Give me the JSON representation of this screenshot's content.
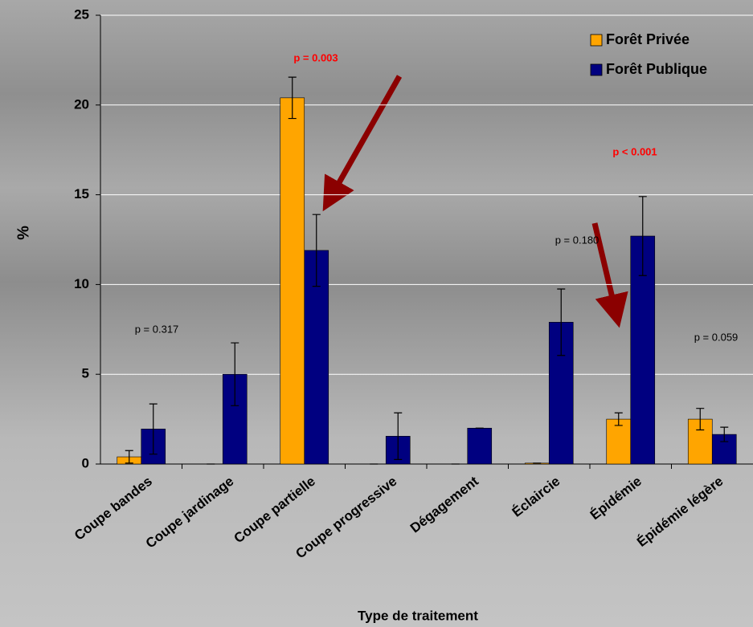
{
  "chart_data": {
    "type": "bar",
    "y_label": "%",
    "x_label": "Type de traitement",
    "categories": [
      "Coupe bandes",
      "Coupe jardinage",
      "Coupe partielle",
      "Coupe progressive",
      "Dégagement",
      "Éclaircie",
      "Épidémie",
      "Épidémie légère"
    ],
    "series": [
      {
        "name": "Forêt Privée",
        "color": "#ffa500",
        "values": [
          0.4,
          0,
          20.4,
          0,
          0,
          0.05,
          2.5,
          2.5
        ],
        "errors": [
          0.35,
          0,
          1.15,
          0,
          0,
          0,
          0.35,
          0.6
        ]
      },
      {
        "name": "Forêt Publique",
        "color": "#000080",
        "values": [
          1.95,
          5.0,
          11.9,
          1.55,
          2.0,
          7.9,
          12.7,
          1.65
        ],
        "errors": [
          1.4,
          1.75,
          2.0,
          1.3,
          0,
          1.85,
          2.2,
          0.4
        ]
      }
    ],
    "annotations": [
      {
        "text": "p = 0.317",
        "color": "#000000"
      },
      {
        "text": "p = 0.003",
        "color": "#ff0000"
      },
      {
        "text": "p = 0.180",
        "color": "#000000"
      },
      {
        "text": "p < 0.001",
        "color": "#ff0000"
      },
      {
        "text": "p = 0.059",
        "color": "#000000"
      }
    ],
    "ylim": [
      0,
      25
    ],
    "yticks": [
      0,
      5,
      10,
      15,
      20,
      25
    ],
    "grid": true,
    "legend": "upper right"
  }
}
